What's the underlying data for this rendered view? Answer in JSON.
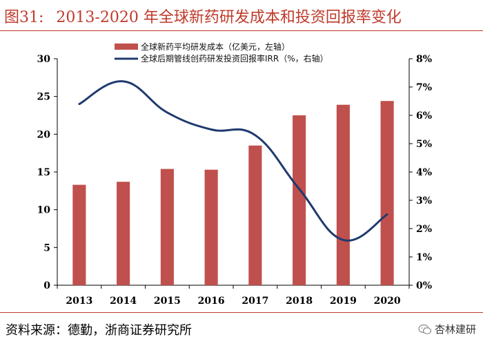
{
  "figure": {
    "number": "图31:",
    "title": "2013-2020 年全球新药研发成本和投资回报率变化"
  },
  "footer": {
    "source": "资料来源：德勤，浙商证券研究所",
    "brand": "杏林建研",
    "brand_icon": "wechat-icon"
  },
  "colors": {
    "accent": "#c0392b",
    "bar": "#c0504d",
    "line": "#1f3a6e"
  },
  "chart_data": {
    "type": "bar",
    "categories": [
      "2013",
      "2014",
      "2015",
      "2016",
      "2017",
      "2018",
      "2019",
      "2020"
    ],
    "series": [
      {
        "name": "全球新药平均研发成本（亿美元，左轴）",
        "type": "bar",
        "axis": "left",
        "values": [
          13.3,
          13.7,
          15.4,
          15.3,
          18.5,
          22.5,
          23.9,
          24.4
        ]
      },
      {
        "name": "全球后期管线创药研发投资回报率IRR（%，右轴）",
        "type": "line",
        "axis": "right",
        "values": [
          6.4,
          7.2,
          6.1,
          5.5,
          5.3,
          3.4,
          1.6,
          2.5
        ]
      }
    ],
    "left_axis": {
      "ticks": [
        "0",
        "5",
        "10",
        "15",
        "20",
        "25",
        "30"
      ],
      "ylim": [
        0,
        30
      ]
    },
    "right_axis": {
      "ticks": [
        "0%",
        "1%",
        "2%",
        "3%",
        "4%",
        "5%",
        "6%",
        "7%",
        "8%"
      ],
      "ylim": [
        0,
        8
      ]
    },
    "grid": false,
    "legend_position": "top-center"
  }
}
